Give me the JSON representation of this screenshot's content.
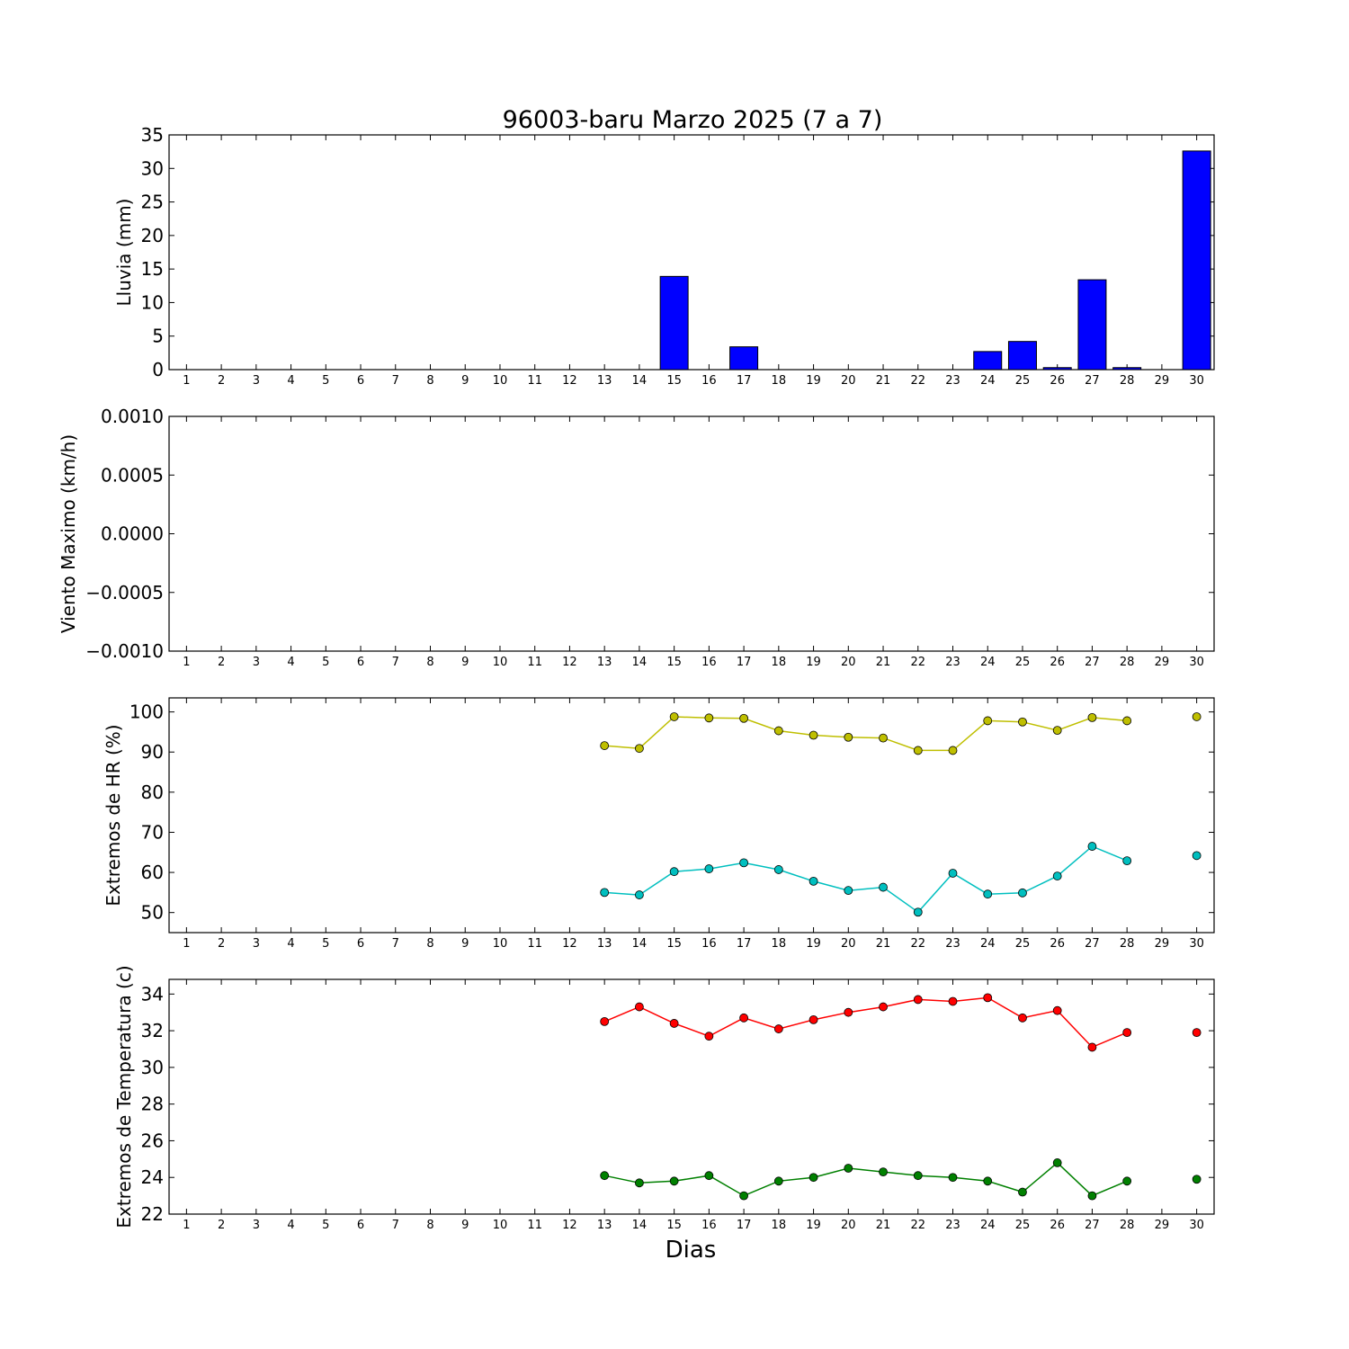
{
  "chart_data": {
    "title": "96003-baru Marzo 2025  (7 a 7)",
    "xlabel": "Dias",
    "x": [
      1,
      2,
      3,
      4,
      5,
      6,
      7,
      8,
      9,
      10,
      11,
      12,
      13,
      14,
      15,
      16,
      17,
      18,
      19,
      20,
      21,
      22,
      23,
      24,
      25,
      26,
      27,
      28,
      29,
      30
    ],
    "subplots": [
      {
        "type": "bar",
        "ylabel": "Lluvia (mm)",
        "ylim": [
          0,
          35
        ],
        "yticks": [
          "0",
          "5",
          "10",
          "15",
          "20",
          "25",
          "30",
          "35"
        ],
        "series": [
          {
            "color": "#0000ff",
            "values": [
              0,
              0,
              0,
              0,
              0,
              0,
              0,
              0,
              0,
              0,
              0,
              0,
              0,
              0,
              13.9,
              0,
              3.4,
              0,
              0,
              0,
              0,
              0,
              0,
              2.7,
              4.2,
              0.3,
              13.4,
              0.3,
              0,
              32.6
            ]
          }
        ]
      },
      {
        "type": "line",
        "ylabel": "Viento Maximo (km/h)",
        "ylim": [
          -0.001,
          0.001
        ],
        "yticks": [
          "−0.0010",
          "−0.0005",
          "0.0000",
          "0.0005",
          "0.0010"
        ],
        "series": []
      },
      {
        "type": "line",
        "ylabel": "Extremos de HR (%)",
        "ylim": [
          45,
          103.5
        ],
        "yticks": [
          "50",
          "60",
          "70",
          "80",
          "90",
          "100"
        ],
        "series": [
          {
            "color": "#bfbf00",
            "values": [
              null,
              null,
              null,
              null,
              null,
              null,
              null,
              null,
              null,
              null,
              null,
              null,
              91.6,
              90.9,
              98.8,
              98.5,
              98.4,
              95.3,
              94.2,
              93.7,
              93.5,
              90.4,
              90.4,
              97.8,
              97.5,
              95.4,
              98.6,
              97.8,
              null,
              98.8
            ]
          },
          {
            "color": "#00bfbf",
            "values": [
              null,
              null,
              null,
              null,
              null,
              null,
              null,
              null,
              null,
              null,
              null,
              null,
              55.0,
              54.4,
              60.2,
              60.9,
              62.4,
              60.7,
              57.8,
              55.5,
              56.3,
              50.1,
              59.8,
              54.6,
              54.9,
              59.1,
              66.5,
              62.9,
              null,
              64.2
            ]
          }
        ]
      },
      {
        "type": "line",
        "ylabel": "Extremos de Temperatura (c)",
        "ylim": [
          22,
          34.8
        ],
        "yticks": [
          "22",
          "24",
          "26",
          "28",
          "30",
          "32",
          "34"
        ],
        "series": [
          {
            "color": "#ff0000",
            "values": [
              null,
              null,
              null,
              null,
              null,
              null,
              null,
              null,
              null,
              null,
              null,
              null,
              32.5,
              33.3,
              32.4,
              31.7,
              32.7,
              32.1,
              32.6,
              33.0,
              33.3,
              33.7,
              33.6,
              33.8,
              32.7,
              33.1,
              31.1,
              31.9,
              null,
              31.9
            ]
          },
          {
            "color": "#008000",
            "values": [
              null,
              null,
              null,
              null,
              null,
              null,
              null,
              null,
              null,
              null,
              null,
              null,
              24.1,
              23.7,
              23.8,
              24.1,
              23.0,
              23.8,
              24.0,
              24.5,
              24.3,
              24.1,
              24.0,
              23.8,
              23.2,
              24.8,
              23.0,
              23.8,
              null,
              23.9
            ]
          }
        ]
      }
    ]
  }
}
